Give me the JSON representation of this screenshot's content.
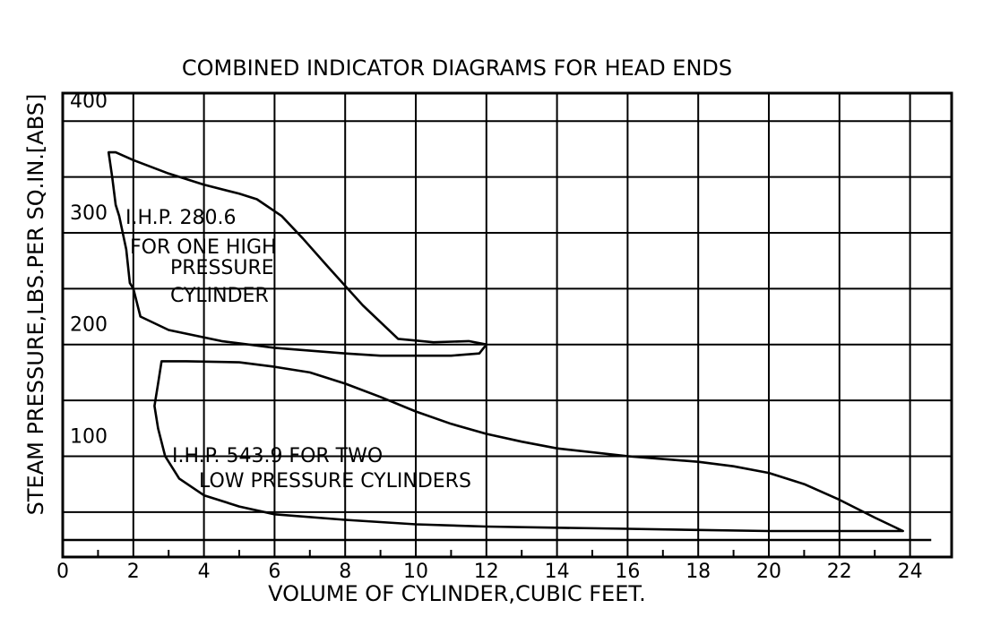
{
  "chart_data": {
    "type": "line",
    "title": "COMBINED INDICATOR DIAGRAMS FOR HEAD ENDS",
    "xlabel": "VOLUME OF CYLINDER,CUBIC FEET.",
    "ylabel": "STEAM PRESSURE,LBS.PER SQ.IN.[ABS]",
    "xlim": [
      0,
      25
    ],
    "ylim": [
      0,
      400
    ],
    "x_ticks": [
      "0",
      "2",
      "4",
      "6",
      "8",
      "10",
      "12",
      "14",
      "16",
      "18",
      "20",
      "22",
      "24"
    ],
    "y_ticks": [
      {
        "value": 100,
        "label": "100"
      },
      {
        "value": 200,
        "label": "200"
      },
      {
        "value": 300,
        "label": "300"
      },
      {
        "value": 400,
        "label": "400"
      }
    ],
    "grid": true,
    "colors": {
      "ink": "#000000",
      "background": "#ffffff"
    },
    "annotations": [
      {
        "lines": [
          "I.H.P. 280.6",
          "FOR ONE HIGH",
          "PRESSURE",
          "CYLINDER"
        ]
      },
      {
        "lines": [
          "I.H.P. 543.9 FOR TWO",
          "LOW PRESSURE CYLINDERS"
        ]
      }
    ],
    "series": [
      {
        "x": [
          1.3,
          1.5,
          2.0,
          3.0,
          4.0,
          5.0,
          5.5,
          6.2,
          6.8,
          7.5,
          8.5,
          9.5,
          10.5,
          11.5,
          12.0,
          11.8,
          11.0,
          10.0,
          9.0,
          8.0,
          6.0,
          4.5,
          3.0,
          2.2,
          2.0,
          1.9,
          1.8,
          1.6,
          1.5,
          1.4,
          1.3
        ],
        "y": [
          347,
          347,
          340,
          328,
          318,
          310,
          305,
          290,
          270,
          245,
          210,
          180,
          177,
          178,
          175,
          167,
          165,
          165,
          165,
          167,
          172,
          178,
          188,
          200,
          225,
          230,
          260,
          290,
          300,
          325,
          347
        ]
      },
      {
        "x": [
          2.8,
          3.5,
          5.0,
          6.0,
          7.0,
          8.0,
          9.0,
          10.0,
          11.0,
          12.0,
          13.0,
          14.0,
          16.0,
          18.0,
          19.0,
          20.0,
          21.0,
          22.0,
          23.0,
          23.8,
          22.0,
          20.0,
          18.0,
          16.0,
          14.0,
          12.0,
          10.0,
          8.0,
          6.0,
          5.0,
          4.0,
          3.3,
          2.9,
          2.7,
          2.6,
          2.7,
          2.8
        ],
        "y": [
          160,
          160,
          159,
          155,
          150,
          140,
          128,
          115,
          104,
          95,
          88,
          82,
          75,
          70,
          66,
          60,
          50,
          36,
          20,
          8,
          8,
          8,
          9,
          10,
          11,
          12,
          14,
          18,
          23,
          30,
          40,
          55,
          75,
          100,
          120,
          140,
          160
        ]
      }
    ]
  }
}
